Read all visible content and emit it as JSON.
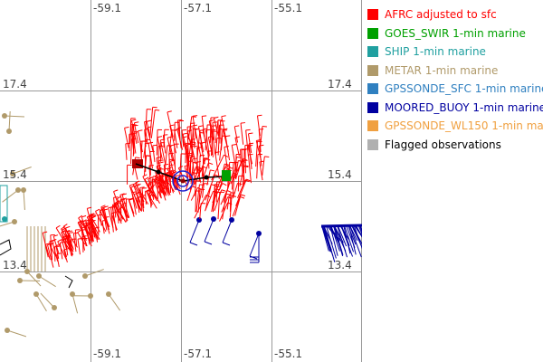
{
  "map": {
    "lon_labels_top": [
      "-59.1",
      "-57.1",
      "-55.1"
    ],
    "lon_labels_bottom": [
      "-59.1",
      "-57.1",
      "-55.1"
    ],
    "lat_labels": [
      "17.4",
      "15.4",
      "13.4"
    ]
  },
  "legend": [
    {
      "label": "AFRC adjusted to sfc",
      "color": "#ff0000"
    },
    {
      "label": "GOES_SWIR 1-min marine",
      "color": "#00a000"
    },
    {
      "label": "SHIP 1-min marine",
      "color": "#20a0a0"
    },
    {
      "label": "METAR 1-min marine",
      "color": "#b09a6a"
    },
    {
      "label": "GPSSONDE_SFC 1-min marine",
      "color": "#3080c0"
    },
    {
      "label": "MOORED_BUOY 1-min marine",
      "color": "#0000a0"
    },
    {
      "label": "GPSSONDE_WL150 1-min mar",
      "color": "#f0a040"
    },
    {
      "label": "Flagged observations",
      "color": "#b0b0b0",
      "text_color": "#000000"
    }
  ]
}
